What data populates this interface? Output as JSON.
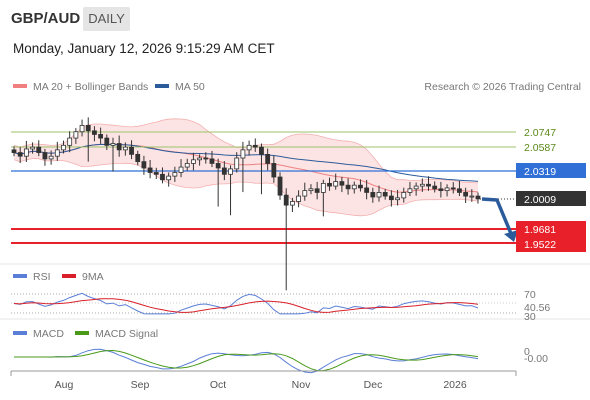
{
  "header": {
    "pair": "GBP/AUD",
    "timeframe": "DAILY",
    "datetime": "Monday, January 12, 2026 9:15:29 AM CET"
  },
  "legend": {
    "ma20": "MA 20 + Bollinger Bands",
    "ma50": "MA 50",
    "copyright": "Research © 2026 Trading Central",
    "ma20_color": "#f08080",
    "ma50_color": "#2c5b9b"
  },
  "levels": {
    "r2": "2.0747",
    "r1": "2.0587",
    "pivot": "2.0319",
    "last": "2.0009",
    "s1": "1.9681",
    "s2": "1.9522",
    "pivot_color": "#2f6fd6",
    "support_color": "#e8202a",
    "resistance_color": "#8ab34a"
  },
  "rsi": {
    "label": "RSI",
    "ma_label": "9MA",
    "level_70": "70",
    "value": "40.56",
    "level_30": "30",
    "rsi_color": "#5b7fd6",
    "ma_color": "#d9202a"
  },
  "macd": {
    "label": "MACD",
    "signal_label": "MACD Signal",
    "zero_label": "0",
    "value": "-0.00",
    "macd_color": "#5b7fd6",
    "signal_color": "#4a9a1a"
  },
  "xaxis": {
    "months": [
      "Aug",
      "Sep",
      "Oct",
      "Nov",
      "Dec",
      "2026"
    ]
  },
  "chart_data": {
    "type": "candlestick",
    "instrument": "GBP/AUD",
    "timeframe": "Daily",
    "overlays": [
      "MA 20 + Bollinger Bands",
      "MA 50"
    ],
    "price_range": [
      1.94,
      2.1
    ],
    "horizontal_levels": [
      {
        "label": "2.0747",
        "value": 2.0747,
        "kind": "resistance"
      },
      {
        "label": "2.0587",
        "value": 2.0587,
        "kind": "resistance"
      },
      {
        "label": "2.0319",
        "value": 2.0319,
        "kind": "pivot"
      },
      {
        "label": "2.0009",
        "value": 2.0009,
        "kind": "last price"
      },
      {
        "label": "1.9681",
        "value": 1.9681,
        "kind": "support"
      },
      {
        "label": "1.9522",
        "value": 1.9522,
        "kind": "support"
      }
    ],
    "close_series": [
      2.052,
      2.048,
      2.056,
      2.058,
      2.052,
      2.045,
      2.048,
      2.055,
      2.06,
      2.068,
      2.075,
      2.082,
      2.076,
      2.072,
      2.068,
      2.06,
      2.062,
      2.055,
      2.058,
      2.05,
      2.042,
      2.035,
      2.03,
      2.028,
      2.022,
      2.026,
      2.03,
      2.036,
      2.04,
      2.044,
      2.046,
      2.045,
      2.04,
      2.035,
      2.028,
      2.034,
      2.046,
      2.055,
      2.06,
      2.058,
      2.05,
      2.04,
      2.025,
      2.005,
      1.994,
      1.998,
      2.004,
      2.01,
      2.012,
      2.008,
      2.018,
      2.015,
      2.02,
      2.016,
      2.012,
      2.016,
      2.013,
      2.008,
      2.003,
      2.008,
      2.004,
      2.0,
      2.002,
      2.008,
      2.012,
      2.015,
      2.017,
      2.015,
      2.012,
      2.01,
      2.013,
      2.012,
      2.008,
      2.004,
      2.004,
      2.0009
    ],
    "rsi": {
      "value": 40.56,
      "levels": [
        70,
        30
      ],
      "ma_period": 9
    },
    "macd": {
      "value": -0.0
    }
  }
}
